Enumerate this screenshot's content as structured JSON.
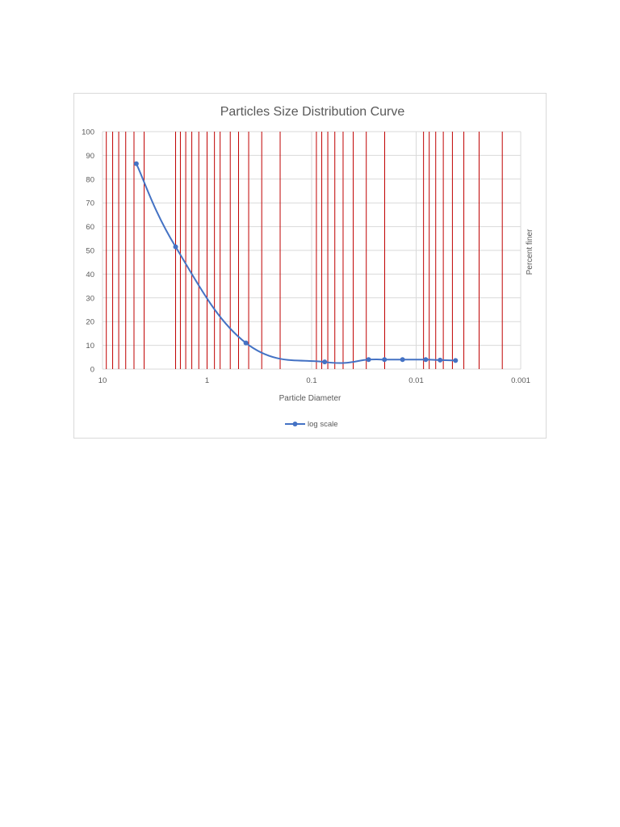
{
  "chart_data": {
    "type": "line",
    "title": "Particles Size Distribution Curve",
    "xlabel": "Particle Diameter",
    "ylabel": "Percent finer",
    "x_scale": "log",
    "x_reversed": true,
    "xlim": [
      10,
      0.001
    ],
    "ylim": [
      0,
      100
    ],
    "y_ticks": [
      0,
      10,
      20,
      30,
      40,
      50,
      60,
      70,
      80,
      90,
      100
    ],
    "x_ticks": [
      10,
      1,
      0.1,
      0.01,
      0.001
    ],
    "x_tick_labels": [
      "10",
      "1",
      "0.1",
      "0.01",
      "0.001"
    ],
    "y_tick_labels": [
      "0",
      "10",
      "20",
      "30",
      "40",
      "50",
      "60",
      "70",
      "80",
      "90",
      "100"
    ],
    "grid": true,
    "grid_color": "#c00000",
    "grid_positions": [
      9.2,
      8,
      7,
      6,
      5,
      4,
      2,
      1.8,
      1.6,
      1.4,
      1.2,
      1,
      0.85,
      0.75,
      0.6,
      0.5,
      0.4,
      0.3,
      0.2,
      0.09,
      0.08,
      0.07,
      0.06,
      0.05,
      0.04,
      0.03,
      0.02,
      0.0085,
      0.0075,
      0.0065,
      0.0055,
      0.0045,
      0.0035,
      0.0025,
      0.0015
    ],
    "legend_position": "bottom",
    "series": [
      {
        "name": "log scale",
        "color": "#4472c4",
        "x": [
          4.75,
          2.0,
          0.425,
          0.075,
          0.0285,
          0.0201,
          0.0135,
          0.0081,
          0.0059,
          0.0042
        ],
        "y": [
          86.5,
          51.5,
          11.0,
          3.0,
          4.0,
          4.0,
          4.0,
          4.0,
          3.8,
          3.6
        ]
      }
    ]
  }
}
